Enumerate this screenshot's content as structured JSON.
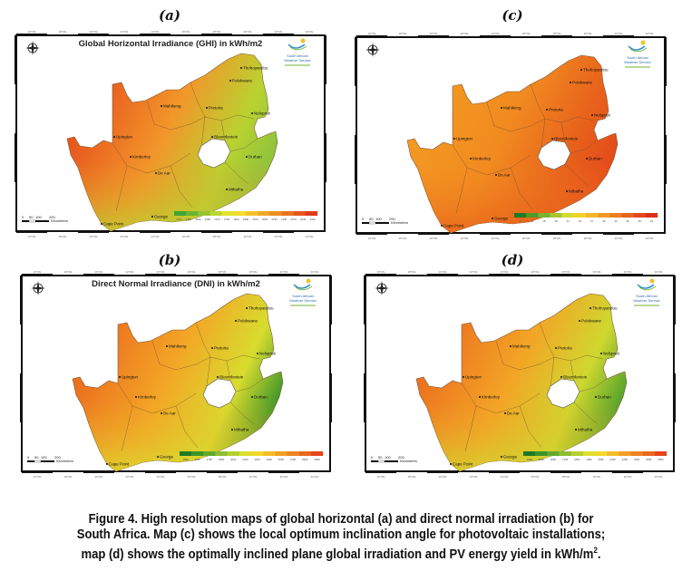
{
  "figure": {
    "panels": [
      {
        "id": "a",
        "label": "(a)",
        "title": "Global Horizontal Irradiance (GHI) in kWh/m2",
        "variable": "GHI",
        "colorscale": [
          "#3fa535",
          "#6bb532",
          "#95c531",
          "#bcd52f",
          "#e2e32c",
          "#f2de2a",
          "#f6c428",
          "#f3a826",
          "#ee8e23",
          "#ea7320",
          "#e5571c",
          "#e13b19"
        ],
        "legend_ticks": [
          "1370",
          "1450",
          "1520",
          "1590",
          "1670",
          "1740",
          "1810",
          "1890",
          "1970",
          "2040",
          "2120",
          "2190",
          "2270",
          "2340",
          "2420"
        ],
        "map_fill": {
          "west": "#e6501c",
          "central": "#f2962a",
          "east": "#b9d230",
          "coast": "#8cc23c"
        },
        "logo": {
          "line1": "South African",
          "line2": "Weather Service"
        },
        "scale_bar": {
          "ticks": [
            "0",
            "50",
            "100",
            "200"
          ],
          "unit": "Kilometers"
        }
      },
      {
        "id": "c",
        "label": "(c)",
        "title": "",
        "variable": "Optimum inclination angle",
        "colorscale": [
          "#1e7a26",
          "#4b9a2a",
          "#78b230",
          "#a8c632",
          "#d6da2e",
          "#f2d22a",
          "#f5b526",
          "#f19a23",
          "#ec7f20",
          "#e7641d",
          "#e3491a",
          "#de2f17"
        ],
        "legend_ticks": [
          "9",
          "12",
          "15",
          "18",
          "21",
          "24",
          "27",
          "30",
          "33",
          "36",
          "39",
          "42"
        ],
        "map_fill": {
          "west": "#f39a22",
          "central": "#f18a20",
          "east": "#e8621c",
          "coast": "#e44a1a"
        },
        "logo": {
          "line1": "South African",
          "line2": "Weather Service"
        },
        "scale_bar": {
          "ticks": [
            "0",
            "50",
            "100",
            "200"
          ],
          "unit": "Kilometers"
        }
      },
      {
        "id": "b",
        "label": "(b)",
        "title": "Direct Normal Irradiance (DNI) in kWh/m2",
        "variable": "DNI",
        "colorscale": [
          "#1e7a26",
          "#3c9428",
          "#63aa2c",
          "#8cbe30",
          "#b4d030",
          "#dcdf2d",
          "#f3d82a",
          "#f5bc27",
          "#f29f24",
          "#ee8421",
          "#e9691e",
          "#e3471a"
        ],
        "legend_ticks": [
          "1500",
          "1650",
          "1750",
          "1850",
          "2000",
          "2150",
          "2300",
          "2450",
          "2600",
          "2750",
          "2900",
          "3050"
        ],
        "map_fill": {
          "west": "#ea6a1e",
          "central": "#f3a626",
          "east": "#d8dc2e",
          "coast": "#3f962a"
        },
        "logo": {
          "line1": "South African",
          "line2": "Weather Service"
        },
        "scale_bar": {
          "ticks": [
            "0",
            "50",
            "100",
            "200"
          ],
          "unit": "Kilometers"
        }
      },
      {
        "id": "d",
        "label": "(d)",
        "title": "",
        "variable": "Optimally inclined plane global irradiation / PV yield",
        "colorscale": [
          "#1e7a26",
          "#3c9428",
          "#63aa2c",
          "#8cbe30",
          "#b4d030",
          "#dcdf2d",
          "#f3d82a",
          "#f5bc27",
          "#f29f24",
          "#ee8421",
          "#e9691e",
          "#e3471a"
        ],
        "legend_ticks": [
          "1450",
          "1550",
          "1650",
          "1750",
          "1850",
          "1950",
          "2050",
          "2150",
          "2250",
          "2350",
          "2450",
          "2550"
        ],
        "map_fill": {
          "west": "#ec6e1f",
          "central": "#f3a426",
          "east": "#cfd82f",
          "coast": "#52a22b"
        },
        "logo": {
          "line1": "South African",
          "line2": "Weather Service"
        },
        "scale_bar": {
          "ticks": [
            "0",
            "50",
            "100",
            "200"
          ],
          "unit": "Kilometers"
        }
      }
    ],
    "cities": [
      "Thohoyandou",
      "Polokwane",
      "Nelspruit",
      "Mahikeng",
      "Pretoria",
      "Bloemfontein",
      "Upington",
      "Kimberley",
      "De Aar",
      "Durban",
      "Mthatha",
      "George",
      "Cape Point"
    ],
    "caption": {
      "line1": "Figure 4.  High resolution maps of global horizontal (a) and direct normal irradiation (b) for",
      "line2": "South Africa. Map (c) shows the local optimum inclination angle for photovoltaic installations;",
      "line3_pre": "map (d) shows the optimally inclined plane global irradiation and PV energy yield in kWh/m",
      "line3_sup": "2",
      "line3_post": "."
    }
  }
}
